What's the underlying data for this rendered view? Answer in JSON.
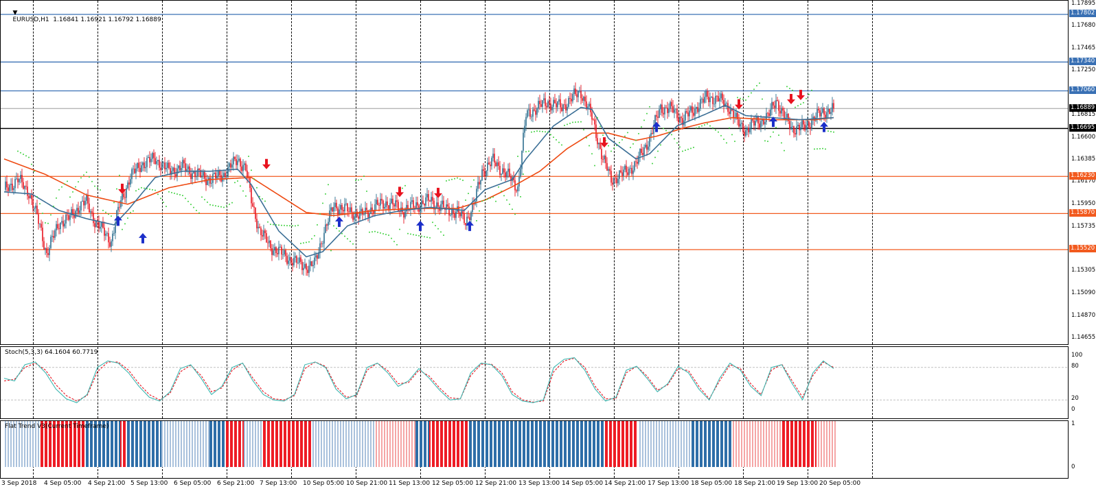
{
  "symbol_header": "EURUSD,H1  1.16841 1.16921 1.16792 1.16889",
  "stoch_header": "Stoch(5,3,3) 64.1604 60.7719",
  "trend_header": "Flat Trend V3(Current Timeframe)",
  "colors": {
    "bull_candle": "#2d6e8f",
    "bear_candle": "#e8131f",
    "ma_fast": "#3b6f96",
    "ma_slow": "#ee4a12",
    "sar": "#3fd13f",
    "resistance_line": "#3970b4",
    "support_line": "#f25a1e",
    "stoch_main": "#3cb7b0",
    "stoch_signal": "#e8131f",
    "trend_up": "#2e6ea8",
    "trend_down": "#ee1c25",
    "arrow_up": "#1c2fc9",
    "arrow_down": "#e8131f"
  },
  "price_axis": {
    "min": 1.14655,
    "max": 1.17895,
    "ticks": [
      "1.17895",
      "1.17680",
      "1.17465",
      "1.17250",
      "1.17035",
      "1.16815",
      "1.16600",
      "1.16385",
      "1.16170",
      "1.15950",
      "1.15735",
      "1.15520",
      "1.15305",
      "1.15090",
      "1.14870",
      "1.14655"
    ],
    "tags": [
      {
        "label": "1.17802",
        "kind": "resistance"
      },
      {
        "label": "1.17340",
        "kind": "resistance"
      },
      {
        "label": "1.17060",
        "kind": "resistance"
      },
      {
        "label": "1.16889",
        "kind": "current"
      },
      {
        "label": "1.16695",
        "kind": "level"
      },
      {
        "label": "1.16230",
        "kind": "support"
      },
      {
        "label": "1.15870",
        "kind": "support"
      },
      {
        "label": "1.15520",
        "kind": "support"
      }
    ]
  },
  "stoch_axis": {
    "ticks": [
      "100",
      "80",
      "20",
      "0"
    ]
  },
  "trend_axis": {
    "ticks": [
      "1",
      "0"
    ]
  },
  "time_axis": [
    "3 Sep 2018",
    "4 Sep 05:00",
    "4 Sep 21:00",
    "5 Sep 13:00",
    "6 Sep 05:00",
    "6 Sep 21:00",
    "7 Sep 13:00",
    "10 Sep 05:00",
    "10 Sep 21:00",
    "11 Sep 13:00",
    "12 Sep 05:00",
    "12 Sep 21:00",
    "13 Sep 13:00",
    "14 Sep 05:00",
    "14 Sep 21:00",
    "17 Sep 13:00",
    "18 Sep 05:00",
    "18 Sep 21:00",
    "19 Sep 13:00",
    "20 Sep 05:00"
  ],
  "chart_data": {
    "type": "candlestick",
    "symbol": "EURUSD",
    "timeframe": "H1",
    "last_bar": {
      "open": 1.16841,
      "high": 1.16921,
      "low": 1.16792,
      "close": 1.16889
    },
    "horizontal_levels": [
      1.17802,
      1.1734,
      1.1706,
      1.16695,
      1.1623,
      1.1587,
      1.1552
    ],
    "close_path": [
      [
        0,
        1.161
      ],
      [
        10,
        1.162
      ],
      [
        18,
        1.1608
      ],
      [
        26,
        1.1575
      ],
      [
        31,
        1.1548
      ],
      [
        36,
        1.1565
      ],
      [
        40,
        1.1578
      ],
      [
        48,
        1.1583
      ],
      [
        55,
        1.1595
      ],
      [
        60,
        1.1598
      ],
      [
        66,
        1.158
      ],
      [
        72,
        1.157
      ],
      [
        78,
        1.156
      ],
      [
        84,
        1.1595
      ],
      [
        92,
        1.1623
      ],
      [
        100,
        1.1635
      ],
      [
        110,
        1.164
      ],
      [
        120,
        1.1628
      ],
      [
        130,
        1.1632
      ],
      [
        140,
        1.1625
      ],
      [
        150,
        1.162
      ],
      [
        160,
        1.1625
      ],
      [
        170,
        1.164
      ],
      [
        176,
        1.163
      ],
      [
        180,
        1.16
      ],
      [
        186,
        1.157
      ],
      [
        194,
        1.1555
      ],
      [
        202,
        1.1548
      ],
      [
        212,
        1.154
      ],
      [
        222,
        1.1535
      ],
      [
        226,
        1.1538
      ],
      [
        232,
        1.1565
      ],
      [
        240,
        1.1595
      ],
      [
        250,
        1.159
      ],
      [
        260,
        1.1585
      ],
      [
        270,
        1.1594
      ],
      [
        280,
        1.1598
      ],
      [
        290,
        1.159
      ],
      [
        300,
        1.1595
      ],
      [
        310,
        1.16
      ],
      [
        320,
        1.1592
      ],
      [
        330,
        1.1588
      ],
      [
        336,
        1.158
      ],
      [
        342,
        1.1595
      ],
      [
        348,
        1.1628
      ],
      [
        356,
        1.1638
      ],
      [
        362,
        1.163
      ],
      [
        368,
        1.1622
      ],
      [
        374,
        1.1612
      ],
      [
        380,
        1.1682
      ],
      [
        388,
        1.169
      ],
      [
        396,
        1.1695
      ],
      [
        406,
        1.169
      ],
      [
        414,
        1.17
      ],
      [
        420,
        1.1705
      ],
      [
        428,
        1.168
      ],
      [
        436,
        1.164
      ],
      [
        442,
        1.162
      ],
      [
        450,
        1.1625
      ],
      [
        460,
        1.1635
      ],
      [
        470,
        1.166
      ],
      [
        478,
        1.169
      ],
      [
        486,
        1.1688
      ],
      [
        494,
        1.1678
      ],
      [
        504,
        1.169
      ],
      [
        512,
        1.17
      ],
      [
        520,
        1.1698
      ],
      [
        528,
        1.169
      ],
      [
        534,
        1.1675
      ],
      [
        540,
        1.1668
      ],
      [
        548,
        1.1676
      ],
      [
        556,
        1.168
      ],
      [
        562,
        1.1698
      ],
      [
        568,
        1.168
      ],
      [
        574,
        1.167
      ],
      [
        582,
        1.167
      ],
      [
        590,
        1.168
      ],
      [
        596,
        1.1685
      ],
      [
        604,
        1.1689
      ]
    ],
    "ma_fast": [
      [
        0,
        1.1608
      ],
      [
        20,
        1.1606
      ],
      [
        40,
        1.159
      ],
      [
        60,
        1.1582
      ],
      [
        80,
        1.1576
      ],
      [
        90,
        1.159
      ],
      [
        110,
        1.1622
      ],
      [
        130,
        1.1628
      ],
      [
        150,
        1.1628
      ],
      [
        170,
        1.163
      ],
      [
        180,
        1.1615
      ],
      [
        200,
        1.157
      ],
      [
        220,
        1.1545
      ],
      [
        232,
        1.155
      ],
      [
        250,
        1.1575
      ],
      [
        270,
        1.1585
      ],
      [
        290,
        1.159
      ],
      [
        310,
        1.1593
      ],
      [
        335,
        1.159
      ],
      [
        350,
        1.161
      ],
      [
        370,
        1.162
      ],
      [
        380,
        1.164
      ],
      [
        400,
        1.1672
      ],
      [
        420,
        1.169
      ],
      [
        428,
        1.1688
      ],
      [
        440,
        1.166
      ],
      [
        460,
        1.164
      ],
      [
        470,
        1.1645
      ],
      [
        490,
        1.1672
      ],
      [
        510,
        1.1683
      ],
      [
        525,
        1.1692
      ],
      [
        540,
        1.1682
      ],
      [
        560,
        1.168
      ],
      [
        580,
        1.1678
      ],
      [
        604,
        1.168
      ]
    ],
    "ma_slow": [
      [
        0,
        1.164
      ],
      [
        30,
        1.1625
      ],
      [
        60,
        1.1605
      ],
      [
        90,
        1.1596
      ],
      [
        120,
        1.1612
      ],
      [
        150,
        1.162
      ],
      [
        180,
        1.1622
      ],
      [
        200,
        1.1605
      ],
      [
        220,
        1.1588
      ],
      [
        240,
        1.1585
      ],
      [
        270,
        1.159
      ],
      [
        300,
        1.1592
      ],
      [
        330,
        1.1592
      ],
      [
        350,
        1.16
      ],
      [
        370,
        1.1613
      ],
      [
        390,
        1.1628
      ],
      [
        410,
        1.165
      ],
      [
        428,
        1.1665
      ],
      [
        440,
        1.1665
      ],
      [
        460,
        1.1658
      ],
      [
        475,
        1.1662
      ],
      [
        495,
        1.167
      ],
      [
        510,
        1.1675
      ],
      [
        530,
        1.168
      ],
      [
        560,
        1.1678
      ],
      [
        590,
        1.1678
      ],
      [
        604,
        1.168
      ]
    ],
    "arrows": [
      {
        "dir": "up",
        "i": 83,
        "price": 1.1585
      },
      {
        "dir": "down",
        "i": 86,
        "price": 1.1606
      },
      {
        "dir": "up",
        "i": 101,
        "price": 1.1568
      },
      {
        "dir": "down",
        "i": 191,
        "price": 1.163
      },
      {
        "dir": "up",
        "i": 244,
        "price": 1.1584
      },
      {
        "dir": "down",
        "i": 288,
        "price": 1.1603
      },
      {
        "dir": "up",
        "i": 303,
        "price": 1.158
      },
      {
        "dir": "down",
        "i": 316,
        "price": 1.1602
      },
      {
        "dir": "up",
        "i": 339,
        "price": 1.158
      },
      {
        "dir": "down",
        "i": 437,
        "price": 1.1651
      },
      {
        "dir": "up",
        "i": 475,
        "price": 1.1676
      },
      {
        "dir": "down",
        "i": 535,
        "price": 1.1688
      },
      {
        "dir": "up",
        "i": 560,
        "price": 1.1681
      },
      {
        "dir": "down",
        "i": 573,
        "price": 1.1693
      },
      {
        "dir": "down",
        "i": 580,
        "price": 1.1697
      },
      {
        "dir": "up",
        "i": 597,
        "price": 1.1676
      }
    ],
    "stoch_main": [
      60,
      55,
      85,
      90,
      70,
      40,
      22,
      15,
      30,
      80,
      92,
      88,
      70,
      45,
      25,
      18,
      35,
      78,
      85,
      60,
      30,
      45,
      80,
      88,
      55,
      30,
      20,
      18,
      30,
      85,
      90,
      80,
      40,
      22,
      30,
      80,
      88,
      70,
      45,
      55,
      78,
      60,
      38,
      20,
      22,
      70,
      88,
      85,
      65,
      30,
      18,
      15,
      20,
      80,
      95,
      98,
      75,
      40,
      18,
      25,
      75,
      82,
      60,
      35,
      50,
      82,
      70,
      40,
      20,
      60,
      88,
      75,
      45,
      28,
      80,
      85,
      50,
      20,
      70,
      92,
      78
    ],
    "stoch_signal": [
      55,
      58,
      80,
      88,
      75,
      48,
      28,
      18,
      28,
      72,
      90,
      90,
      75,
      50,
      30,
      20,
      32,
      72,
      84,
      65,
      35,
      42,
      75,
      88,
      60,
      35,
      22,
      20,
      28,
      78,
      90,
      82,
      45,
      25,
      28,
      75,
      88,
      74,
      50,
      52,
      75,
      64,
      42,
      24,
      22,
      65,
      86,
      86,
      70,
      35,
      20,
      16,
      18,
      72,
      92,
      97,
      80,
      45,
      22,
      22,
      70,
      82,
      64,
      38,
      48,
      78,
      74,
      45,
      22,
      55,
      85,
      78,
      50,
      30,
      75,
      86,
      55,
      25,
      65,
      90,
      80
    ],
    "trend_segments": [
      {
        "from": 0,
        "to": 26,
        "state": "mixed"
      },
      {
        "from": 26,
        "to": 60,
        "state": "down"
      },
      {
        "from": 60,
        "to": 85,
        "state": "up"
      },
      {
        "from": 85,
        "to": 90,
        "state": "down"
      },
      {
        "from": 90,
        "to": 115,
        "state": "up"
      },
      {
        "from": 115,
        "to": 150,
        "state": "mixed"
      },
      {
        "from": 150,
        "to": 162,
        "state": "up"
      },
      {
        "from": 162,
        "to": 175,
        "state": "down"
      },
      {
        "from": 175,
        "to": 188,
        "state": "mixed"
      },
      {
        "from": 188,
        "to": 225,
        "state": "down"
      },
      {
        "from": 225,
        "to": 270,
        "state": "mixed"
      },
      {
        "from": 270,
        "to": 300,
        "state": "mixed_down"
      },
      {
        "from": 300,
        "to": 310,
        "state": "up"
      },
      {
        "from": 310,
        "to": 338,
        "state": "down"
      },
      {
        "from": 338,
        "to": 437,
        "state": "up"
      },
      {
        "from": 437,
        "to": 462,
        "state": "down"
      },
      {
        "from": 462,
        "to": 500,
        "state": "mixed"
      },
      {
        "from": 500,
        "to": 530,
        "state": "up"
      },
      {
        "from": 530,
        "to": 566,
        "state": "mixed_down"
      },
      {
        "from": 566,
        "to": 592,
        "state": "down"
      },
      {
        "from": 592,
        "to": 606,
        "state": "mixed_down"
      }
    ]
  }
}
